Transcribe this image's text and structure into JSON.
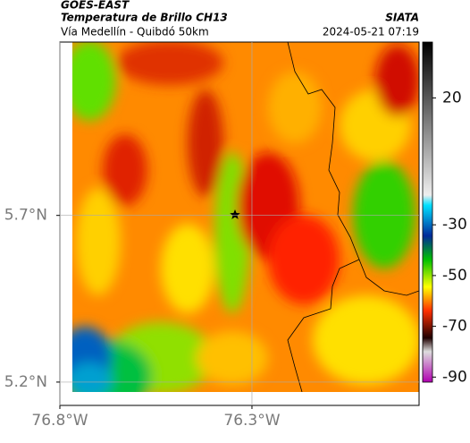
{
  "header": {
    "title": "GOES-EAST",
    "subtitle": "Temperatura de Brillo CH13",
    "source": "SIATA",
    "region": "Vía Medellín - Quibdó 50km",
    "datetime": "2024-05-21 07:19"
  },
  "map": {
    "xlim": [
      -76.8,
      -75.865
    ],
    "ylim": [
      5.13,
      6.22
    ],
    "xticks": [
      {
        "value": -76.8,
        "label": "76.8°W"
      },
      {
        "value": -76.3,
        "label": "76.3°W"
      }
    ],
    "yticks": [
      {
        "value": 5.2,
        "label": "5.2°N"
      },
      {
        "value": 5.7,
        "label": "5.7°N"
      }
    ]
  },
  "colorbar": {
    "lim": [
      -92,
      42
    ],
    "ticks": [
      20,
      -30,
      -50,
      -70,
      -90
    ]
  }
}
